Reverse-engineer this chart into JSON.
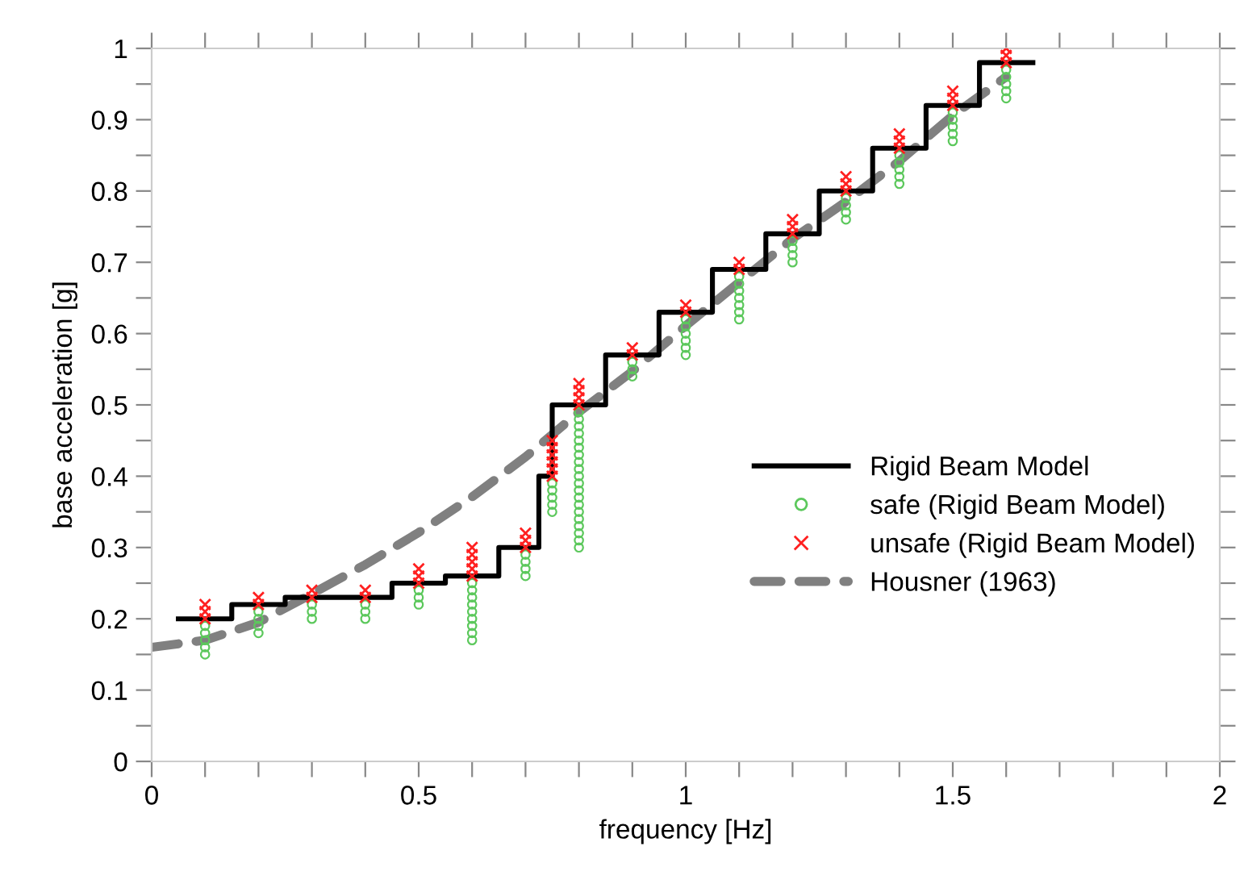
{
  "chart_data": {
    "type": "line",
    "xlabel": "frequency [Hz]",
    "ylabel": "base acceleration [g]",
    "xlim": [
      0,
      2
    ],
    "ylim": [
      0,
      1
    ],
    "xticks": [
      0,
      {
        "value": 0.1,
        "label": null
      },
      {
        "value": 0.2,
        "label": null
      },
      {
        "value": 0.3,
        "label": null
      },
      {
        "value": 0.4,
        "label": null
      },
      0.5,
      {
        "value": 0.6,
        "label": null
      },
      {
        "value": 0.7,
        "label": null
      },
      {
        "value": 0.8,
        "label": null
      },
      {
        "value": 0.9,
        "label": null
      },
      1,
      {
        "value": 1.1,
        "label": null
      },
      {
        "value": 1.2,
        "label": null
      },
      {
        "value": 1.3,
        "label": null
      },
      {
        "value": 1.4,
        "label": null
      },
      1.5,
      {
        "value": 1.6,
        "label": null
      },
      {
        "value": 1.7,
        "label": null
      },
      {
        "value": 1.8,
        "label": null
      },
      {
        "value": 1.9,
        "label": null
      },
      2
    ],
    "yticks": [
      0,
      {
        "value": 0.05,
        "label": null
      },
      0.1,
      {
        "value": 0.15,
        "label": null
      },
      0.2,
      {
        "value": 0.25,
        "label": null
      },
      0.3,
      {
        "value": 0.35,
        "label": null
      },
      0.4,
      {
        "value": 0.45,
        "label": null
      },
      0.5,
      {
        "value": 0.55,
        "label": null
      },
      0.6,
      {
        "value": 0.65,
        "label": null
      },
      0.7,
      {
        "value": 0.75,
        "label": null
      },
      0.8,
      {
        "value": 0.85,
        "label": null
      },
      0.9,
      {
        "value": 0.95,
        "label": null
      },
      1
    ],
    "grid": false,
    "legend": "right",
    "series": [
      {
        "name": "Rigid Beam Model",
        "type": "step",
        "color": "#000000",
        "line_style": "solid",
        "marker": "none",
        "x": [
          0.05,
          0.15,
          0.25,
          0.45,
          0.55,
          0.65,
          0.725,
          0.75,
          0.85,
          0.95,
          1.05,
          1.15,
          1.25,
          1.35,
          1.45,
          1.55,
          1.65
        ],
        "values": [
          0.2,
          0.22,
          0.23,
          0.25,
          0.26,
          0.3,
          0.4,
          0.5,
          0.57,
          0.63,
          0.69,
          0.74,
          0.8,
          0.86,
          0.92,
          0.98,
          0.98
        ]
      },
      {
        "name": "safe (Rigid Beam Model)",
        "type": "scatter",
        "color": "#5cc85c",
        "marker": "circle",
        "x": [
          0.1,
          0.1,
          0.1,
          0.1,
          0.1,
          0.2,
          0.2,
          0.2,
          0.2,
          0.3,
          0.3,
          0.3,
          0.4,
          0.4,
          0.4,
          0.5,
          0.5,
          0.5,
          0.6,
          0.6,
          0.6,
          0.6,
          0.6,
          0.6,
          0.6,
          0.6,
          0.6,
          0.7,
          0.7,
          0.7,
          0.7,
          0.75,
          0.75,
          0.75,
          0.75,
          0.75,
          0.8,
          0.8,
          0.8,
          0.8,
          0.8,
          0.8,
          0.8,
          0.8,
          0.8,
          0.8,
          0.8,
          0.8,
          0.8,
          0.8,
          0.8,
          0.8,
          0.8,
          0.8,
          0.8,
          0.8,
          0.9,
          0.9,
          0.9,
          1.0,
          1.0,
          1.0,
          1.0,
          1.0,
          1.0,
          1.1,
          1.1,
          1.1,
          1.1,
          1.1,
          1.1,
          1.1,
          1.2,
          1.2,
          1.2,
          1.2,
          1.3,
          1.3,
          1.3,
          1.3,
          1.4,
          1.4,
          1.4,
          1.4,
          1.4,
          1.5,
          1.5,
          1.5,
          1.5,
          1.5,
          1.6,
          1.6,
          1.6,
          1.6,
          1.6
        ],
        "values": [
          0.15,
          0.16,
          0.17,
          0.18,
          0.19,
          0.18,
          0.19,
          0.2,
          0.21,
          0.2,
          0.21,
          0.22,
          0.2,
          0.21,
          0.22,
          0.22,
          0.23,
          0.24,
          0.17,
          0.18,
          0.19,
          0.2,
          0.21,
          0.22,
          0.23,
          0.24,
          0.25,
          0.26,
          0.27,
          0.28,
          0.29,
          0.35,
          0.36,
          0.37,
          0.38,
          0.39,
          0.3,
          0.31,
          0.32,
          0.33,
          0.34,
          0.35,
          0.36,
          0.37,
          0.38,
          0.39,
          0.4,
          0.41,
          0.42,
          0.43,
          0.44,
          0.45,
          0.46,
          0.47,
          0.48,
          0.49,
          0.54,
          0.55,
          0.56,
          0.57,
          0.58,
          0.59,
          0.6,
          0.61,
          0.62,
          0.62,
          0.63,
          0.64,
          0.65,
          0.66,
          0.67,
          0.68,
          0.7,
          0.71,
          0.72,
          0.73,
          0.76,
          0.77,
          0.78,
          0.79,
          0.81,
          0.82,
          0.83,
          0.84,
          0.85,
          0.87,
          0.88,
          0.89,
          0.9,
          0.91,
          0.93,
          0.94,
          0.95,
          0.96,
          0.97
        ]
      },
      {
        "name": "unsafe (Rigid Beam Model)",
        "type": "scatter",
        "color": "#ff2020",
        "marker": "cross",
        "x": [
          0.1,
          0.1,
          0.1,
          0.2,
          0.2,
          0.3,
          0.3,
          0.4,
          0.4,
          0.5,
          0.5,
          0.5,
          0.6,
          0.6,
          0.6,
          0.6,
          0.6,
          0.7,
          0.7,
          0.7,
          0.75,
          0.75,
          0.75,
          0.75,
          0.75,
          0.75,
          0.8,
          0.8,
          0.8,
          0.8,
          0.9,
          0.9,
          1.0,
          1.0,
          1.1,
          1.1,
          1.2,
          1.2,
          1.2,
          1.3,
          1.3,
          1.3,
          1.4,
          1.4,
          1.4,
          1.5,
          1.5,
          1.5,
          1.6,
          1.6,
          1.6
        ],
        "values": [
          0.2,
          0.21,
          0.22,
          0.22,
          0.23,
          0.23,
          0.24,
          0.23,
          0.24,
          0.25,
          0.26,
          0.27,
          0.26,
          0.27,
          0.28,
          0.29,
          0.3,
          0.3,
          0.31,
          0.32,
          0.4,
          0.41,
          0.42,
          0.43,
          0.44,
          0.45,
          0.5,
          0.51,
          0.52,
          0.53,
          0.57,
          0.58,
          0.63,
          0.64,
          0.69,
          0.7,
          0.74,
          0.75,
          0.76,
          0.8,
          0.81,
          0.82,
          0.86,
          0.87,
          0.88,
          0.92,
          0.93,
          0.94,
          0.98,
          0.99,
          1.0
        ]
      },
      {
        "name": "Housner (1963)",
        "color": "#808080",
        "line_style": "dashed",
        "marker": "none",
        "x": [
          0,
          0.1,
          0.2,
          0.3,
          0.4,
          0.5,
          0.6,
          0.7,
          0.8,
          0.9,
          1.0,
          1.1,
          1.2,
          1.3,
          1.4,
          1.5,
          1.6
        ],
        "values": [
          0.16,
          0.17,
          0.195,
          0.235,
          0.276,
          0.321,
          0.371,
          0.427,
          0.49,
          0.547,
          0.611,
          0.672,
          0.733,
          0.785,
          0.842,
          0.906,
          0.96
        ]
      }
    ]
  }
}
